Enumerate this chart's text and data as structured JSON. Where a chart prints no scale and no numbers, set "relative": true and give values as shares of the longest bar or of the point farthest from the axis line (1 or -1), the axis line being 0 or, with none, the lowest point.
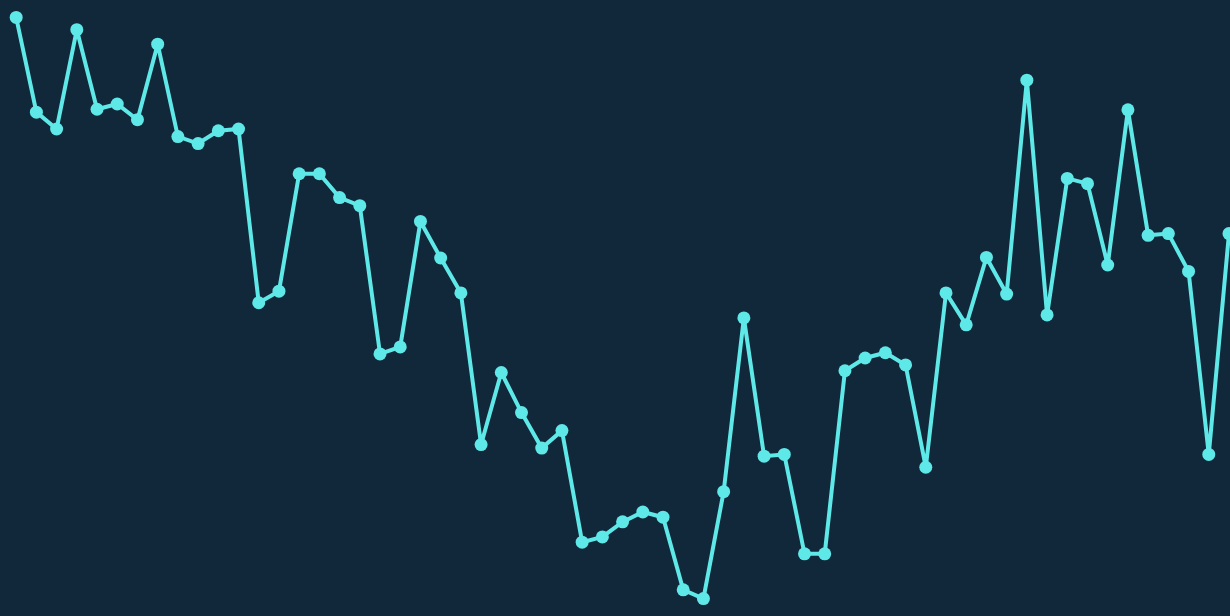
{
  "chart_data": {
    "type": "line",
    "relative": true,
    "marker": "circle",
    "line_style": "solid",
    "categories": [
      null,
      null,
      null,
      null,
      null,
      null,
      null,
      null,
      null,
      null,
      null,
      null,
      null,
      null,
      null,
      null,
      null,
      null,
      null,
      null,
      null,
      null,
      null,
      null,
      null,
      null,
      null,
      null,
      null,
      null,
      null,
      null,
      null,
      null,
      null,
      null,
      null,
      null,
      null,
      null,
      null,
      null,
      null,
      null,
      null,
      null,
      null,
      null,
      null,
      null,
      null,
      null,
      null,
      null,
      null,
      null,
      null,
      null,
      null,
      null,
      null
    ],
    "series": [
      {
        "color": "#5fe8e8",
        "values": [
          1.0,
          0.837,
          0.808,
          0.979,
          0.842,
          0.851,
          0.824,
          0.954,
          0.795,
          0.783,
          0.805,
          0.808,
          0.509,
          0.529,
          0.731,
          0.731,
          0.69,
          0.676,
          0.421,
          0.433,
          0.649,
          0.586,
          0.526,
          0.265,
          0.389,
          0.32,
          0.259,
          0.289,
          0.097,
          0.106,
          0.132,
          0.149,
          0.14,
          0.015,
          0.0,
          0.184,
          0.483,
          0.245,
          0.248,
          0.077,
          0.077,
          0.392,
          0.414,
          0.423,
          0.402,
          0.226,
          0.526,
          0.471,
          0.587,
          0.524,
          0.892,
          0.488,
          0.723,
          0.714,
          0.574,
          0.841,
          0.625,
          0.628,
          0.563,
          0.248,
          0.628
        ]
      }
    ]
  }
}
